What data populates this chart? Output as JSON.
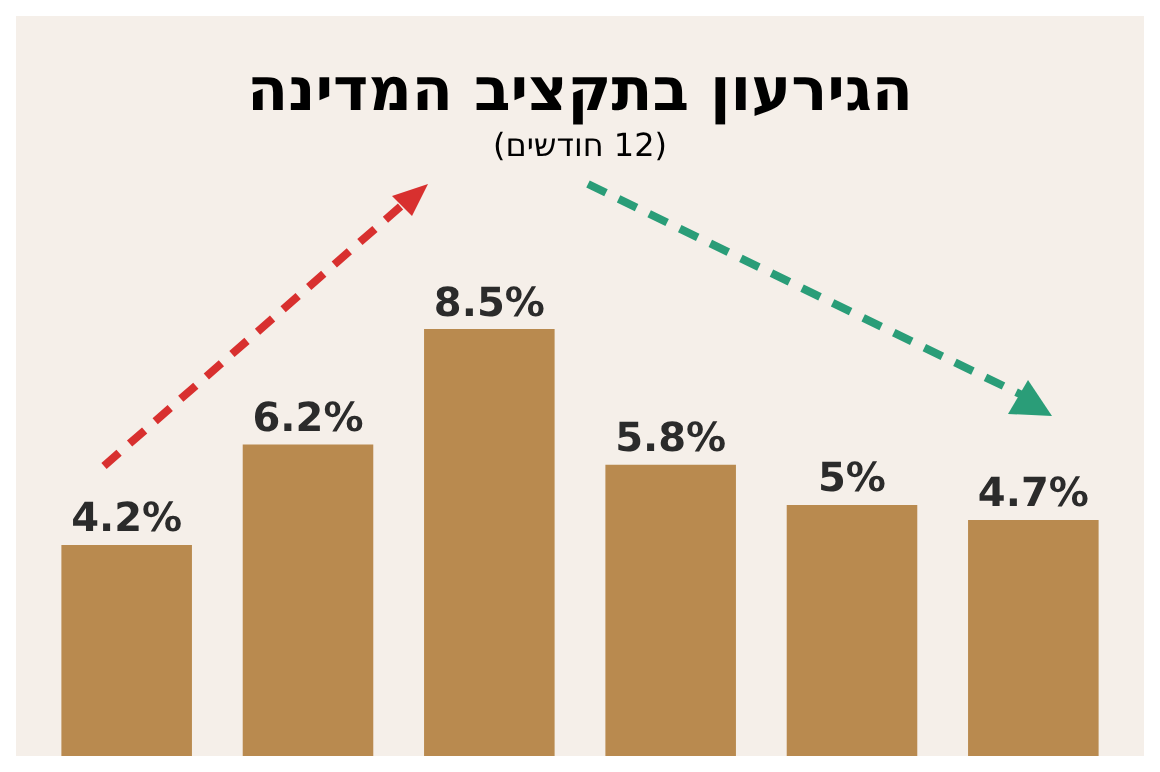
{
  "chart_data": {
    "type": "bar",
    "title": "הגירעון בתקציב המדינה",
    "subtitle": "(12 חודשים)",
    "categories": [
      null,
      null,
      null,
      null,
      null,
      null
    ],
    "values": [
      4.2,
      6.2,
      8.5,
      5.8,
      5,
      4.7
    ],
    "value_labels": [
      "4.2%",
      "6.2%",
      "8.5%",
      "5.8%",
      "5%",
      "4.7%"
    ],
    "color": "#b98a4f",
    "grid": false,
    "legend": false
  }
}
